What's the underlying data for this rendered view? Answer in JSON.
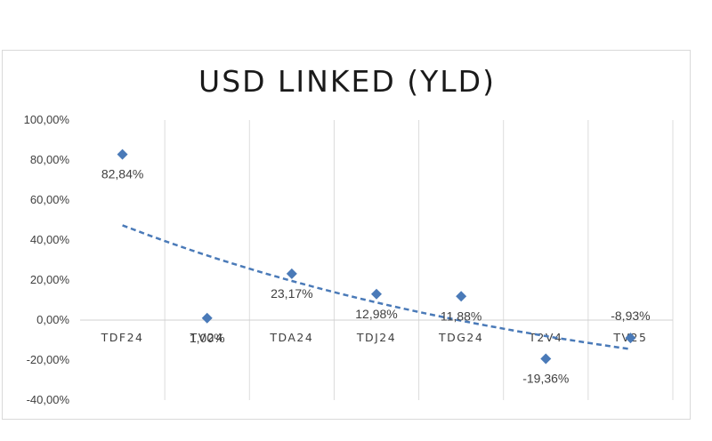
{
  "chart_data": {
    "type": "scatter",
    "title": "USD LINKED (YLD)",
    "categories": [
      "TDF24",
      "TV24",
      "TDA24",
      "TDJ24",
      "TDG24",
      "T2V4",
      "TV25"
    ],
    "series": [
      {
        "values": [
          82.84,
          1.0,
          23.17,
          12.98,
          11.88,
          -19.36,
          -8.93
        ],
        "data_labels": [
          "82,84%",
          "1,00%",
          "23,17%",
          "12,98%",
          "11,88%",
          "-19,36%",
          "-8,93%"
        ],
        "marker": "diamond",
        "color": "#4a7ab8"
      }
    ],
    "trendline": {
      "type": "exponential-fit",
      "style": "dashed",
      "color": "#4a7ab8"
    },
    "ylim": [
      -40,
      100
    ],
    "y_ticks": [
      100,
      80,
      60,
      40,
      20,
      0,
      -20,
      -40
    ],
    "y_tick_labels": [
      "100,00%",
      "80,00%",
      "60,00%",
      "40,00%",
      "20,00%",
      "0,00%",
      "-20,00%",
      "-40,00%"
    ],
    "grid": "vertical",
    "legend": "none",
    "xlabel": "",
    "ylabel": ""
  }
}
